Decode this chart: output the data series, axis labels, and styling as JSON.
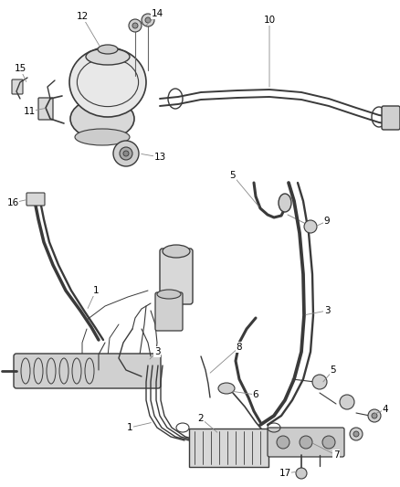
{
  "background_color": "#ffffff",
  "line_color": "#3a3a3a",
  "label_color": "#000000",
  "fig_width": 4.38,
  "fig_height": 5.33,
  "dpi": 100,
  "label_fontsize": 7.5,
  "leader_color": "#888888",
  "leader_lw": 0.6,
  "component_fill": "#e0e0e0",
  "hose_lw": 2.2,
  "detail_lw": 0.8
}
